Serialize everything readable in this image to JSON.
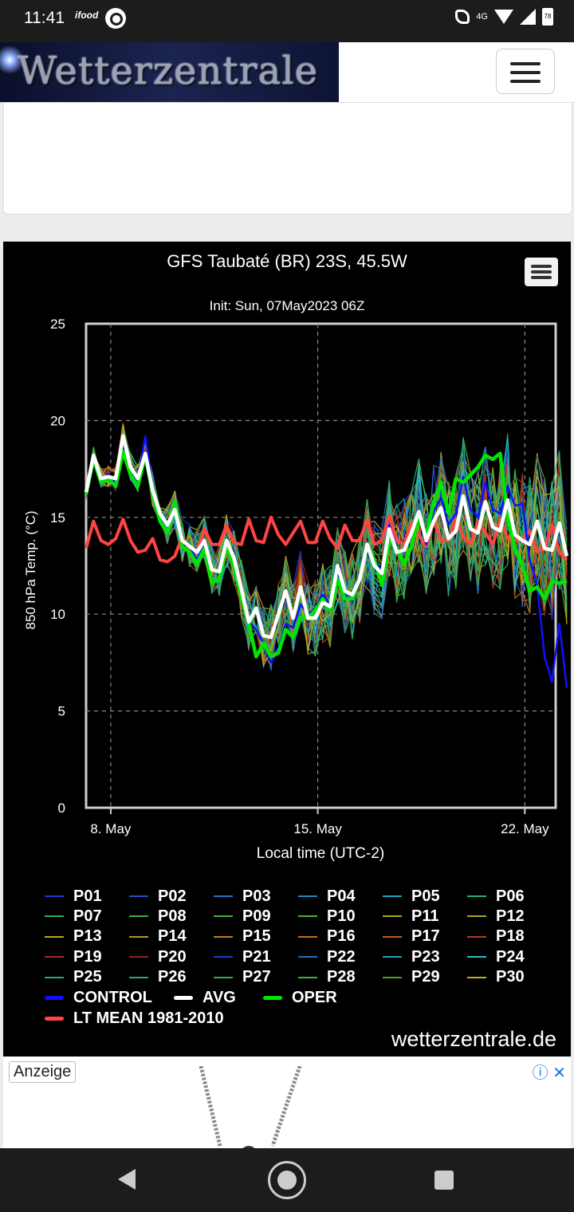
{
  "status_bar": {
    "time": "11:41",
    "app_label": "ifood",
    "network": "4G",
    "battery": "78"
  },
  "header": {
    "logo_text": "Wetterzentrale"
  },
  "chart": {
    "title": "GFS Taubaté (BR) 23S, 45.5W",
    "subtitle": "Init: Sun, 07May2023 06Z",
    "credit": "wetterzentrale.de"
  },
  "chart_data": {
    "type": "line",
    "title": "GFS Taubaté (BR) 23S, 45.5W",
    "subtitle": "Init: Sun, 07May2023 06Z",
    "xlabel": "Local time (UTC-2)",
    "ylabel": "850 hPa Temp. (°C)",
    "xlim": [
      "2023-05-07T04:00",
      "2023-05-23T01:00"
    ],
    "ylim": [
      0,
      25
    ],
    "x_ticks": [
      "8. May",
      "15. May",
      "22. May"
    ],
    "y_ticks": [
      0,
      5,
      10,
      15,
      20,
      25
    ],
    "grid": true,
    "legend": "bottom",
    "x_step_hours": 6,
    "x_start": "2023-05-07T04:00",
    "series": [
      {
        "name": "OPER",
        "color": "#00e600",
        "values": [
          16.2,
          18,
          16.8,
          17,
          16.6,
          18.4,
          17.2,
          16.6,
          18.2,
          16.2,
          14.8,
          14.2,
          15.8,
          13.5,
          13.2,
          12.6,
          13.4,
          11.6,
          11.8,
          13.6,
          12.5,
          10.8,
          9.5,
          7.8,
          8.5,
          7.8,
          8,
          9.2,
          8.8,
          9.8,
          9.8,
          10.2,
          10.8,
          10.2,
          11.8,
          10.8,
          10.8,
          11.8,
          13.5,
          12.8,
          11.5,
          13.8,
          13.4,
          12.6,
          13.5,
          15,
          14,
          15.8,
          16.8,
          15.2,
          17,
          16.8,
          17.2,
          17.6,
          18.2,
          18,
          18.3,
          15,
          13.4,
          12.5,
          11.2,
          11.4,
          10.8,
          11.7,
          11.6,
          11.7
        ]
      },
      {
        "name": "AVG",
        "color": "#ffffff",
        "values": [
          16.3,
          18.2,
          17,
          17.1,
          17,
          19.2,
          17.6,
          17,
          18.3,
          16.4,
          15.2,
          14.6,
          15.4,
          13.8,
          13.5,
          13.2,
          13.8,
          12.3,
          12.2,
          13.8,
          12.9,
          11.3,
          9.6,
          10.3,
          8.9,
          8.8,
          10,
          11.2,
          9.8,
          11.4,
          9.8,
          9.8,
          10.6,
          10.4,
          12.5,
          11.2,
          11,
          11.8,
          13.6,
          12.5,
          12.1,
          14.4,
          13.2,
          13.3,
          14.2,
          15.3,
          13.8,
          14.8,
          15.5,
          13.9,
          14.3,
          16.1,
          14.4,
          14.2,
          15.8,
          14.5,
          14.3,
          15.9,
          14.1,
          13.8,
          13.6,
          14.8,
          13.4,
          13.3,
          14.7,
          13
        ]
      },
      {
        "name": "LT MEAN 1981-2010",
        "color": "#ff4444",
        "values": [
          13.4,
          14.8,
          13.8,
          13.6,
          13.9,
          14.9,
          13.8,
          13.2,
          13.3,
          13.9,
          12.8,
          12.7,
          13,
          14,
          13.3,
          13.2,
          14.4,
          13.6,
          13.6,
          14.6,
          13.7,
          13.6,
          14.9,
          13.8,
          13.7,
          15,
          14.1,
          13.6,
          14.2,
          14.8,
          13.7,
          13.7,
          14.8,
          13.9,
          13.4,
          14.6,
          13.8,
          13.8,
          14.9,
          13.6,
          13.8,
          15.1,
          13.8,
          13.6,
          14.7,
          14.1,
          13.5,
          14.8,
          13.8,
          13.8,
          14.9,
          14,
          13.6,
          14.8,
          14.2,
          13.6,
          14.9,
          13.9,
          13.8,
          13.9,
          14.3,
          13.2,
          13.4,
          14.6,
          13.2,
          12.8
        ]
      },
      {
        "name": "CONTROL",
        "color": "#1010ff",
        "values": [
          16.3,
          18.1,
          16.8,
          17.2,
          16.8,
          18.8,
          17.3,
          16.8,
          19.2,
          16.6,
          15,
          14.5,
          15.6,
          13.6,
          13.5,
          12.8,
          13.6,
          12.3,
          12.1,
          13.8,
          12.8,
          11,
          9.6,
          9.2,
          8.5,
          7.5,
          8.2,
          9.5,
          9.3,
          10.5,
          10,
          10.3,
          11,
          10.5,
          12.2,
          11,
          10.7,
          11.6,
          13.6,
          12.8,
          12.2,
          14.6,
          13.4,
          13.2,
          14.2,
          15,
          13.6,
          15.3,
          16,
          14.6,
          15.2,
          17.1,
          15.4,
          15,
          16.8,
          15.4,
          15.2,
          16.6,
          15.6,
          15.7,
          12.8,
          11.5,
          7.8,
          6.5,
          9.5,
          6.2
        ]
      }
    ],
    "ensemble_members": [
      "P01",
      "P02",
      "P03",
      "P04",
      "P05",
      "P06",
      "P07",
      "P08",
      "P09",
      "P10",
      "P11",
      "P12",
      "P13",
      "P14",
      "P15",
      "P16",
      "P17",
      "P18",
      "P19",
      "P20",
      "P21",
      "P22",
      "P23",
      "P24",
      "P25",
      "P26",
      "P27",
      "P28",
      "P29",
      "P30"
    ],
    "member_colors": [
      "#1e3cc8",
      "#2050c8",
      "#2870c0",
      "#1c88c8",
      "#20a0c0",
      "#20b080",
      "#20b060",
      "#30b040",
      "#40b040",
      "#50b030",
      "#a8a820",
      "#b8a020",
      "#c0a030",
      "#c09020",
      "#c08020",
      "#c07020",
      "#c06020",
      "#b04020",
      "#a03020",
      "#902020",
      "#1a3cc8",
      "#1e70c8",
      "#20a0c0",
      "#20c0c0",
      "#20b080",
      "#20b070",
      "#30b050",
      "#40b040",
      "#50a030",
      "#c0b020"
    ]
  },
  "legend_entries": {
    "members": [
      "P01",
      "P02",
      "P03",
      "P04",
      "P05",
      "P06",
      "P07",
      "P08",
      "P09",
      "P10",
      "P11",
      "P12",
      "P13",
      "P14",
      "P15",
      "P16",
      "P17",
      "P18",
      "P19",
      "P20",
      "P21",
      "P22",
      "P23",
      "P24",
      "P25",
      "P26",
      "P27",
      "P28",
      "P29",
      "P30"
    ],
    "control": "CONTROL",
    "avg": "AVG",
    "oper": "OPER",
    "lt_mean": "LT MEAN 1981-2010"
  },
  "ad": {
    "label": "Anzeige"
  }
}
